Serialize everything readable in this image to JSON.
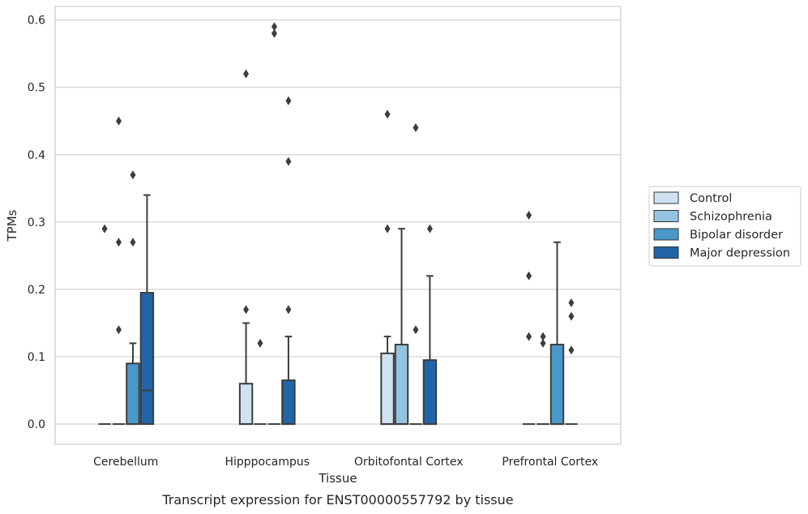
{
  "caption": "Transcript expression for ENST00000557792 by tissue",
  "chart_data": {
    "type": "box",
    "title": "",
    "xlabel": "Tissue",
    "ylabel": "TPMs",
    "ylim": [
      -0.03,
      0.62
    ],
    "yticks": [
      "0.0",
      "0.1",
      "0.2",
      "0.3",
      "0.4",
      "0.5",
      "0.6"
    ],
    "grid": true,
    "legend_position": "right",
    "categories": [
      "Cerebellum",
      "Hipppocampus",
      "Orbitofontal Cortex",
      "Prefrontal Cortex"
    ],
    "series": [
      {
        "name": "Control",
        "color": "#d0e1f2",
        "boxes": [
          {
            "q1": 0,
            "median": 0,
            "q3": 0,
            "whisker_low": 0,
            "whisker_high": 0,
            "outliers": [
              0.29
            ]
          },
          {
            "q1": 0,
            "median": 0,
            "q3": 0.06,
            "whisker_low": 0,
            "whisker_high": 0.15,
            "outliers": [
              0.17,
              0.52
            ]
          },
          {
            "q1": 0,
            "median": 0,
            "q3": 0.105,
            "whisker_low": 0,
            "whisker_high": 0.13,
            "outliers": [
              0.29,
              0.46
            ]
          },
          {
            "q1": 0,
            "median": 0,
            "q3": 0,
            "whisker_low": 0,
            "whisker_high": 0,
            "outliers": [
              0.13,
              0.22,
              0.31
            ]
          }
        ]
      },
      {
        "name": "Schizophrenia",
        "color": "#94c4df",
        "boxes": [
          {
            "q1": 0,
            "median": 0,
            "q3": 0,
            "whisker_low": 0,
            "whisker_high": 0,
            "outliers": [
              0.14,
              0.27,
              0.45
            ]
          },
          {
            "q1": 0,
            "median": 0,
            "q3": 0,
            "whisker_low": 0,
            "whisker_high": 0,
            "outliers": [
              0.12
            ]
          },
          {
            "q1": 0,
            "median": 0,
            "q3": 0.118,
            "whisker_low": 0,
            "whisker_high": 0.29,
            "outliers": []
          },
          {
            "q1": 0,
            "median": 0,
            "q3": 0,
            "whisker_low": 0,
            "whisker_high": 0,
            "outliers": [
              0.12,
              0.13
            ]
          }
        ]
      },
      {
        "name": "Bipolar disorder",
        "color": "#4a98c9",
        "boxes": [
          {
            "q1": 0,
            "median": 0,
            "q3": 0.09,
            "whisker_low": 0,
            "whisker_high": 0.12,
            "outliers": [
              0.27,
              0.37
            ]
          },
          {
            "q1": 0,
            "median": 0,
            "q3": 0,
            "whisker_low": 0,
            "whisker_high": 0,
            "outliers": [
              0.58,
              0.59
            ]
          },
          {
            "q1": 0,
            "median": 0,
            "q3": 0,
            "whisker_low": 0,
            "whisker_high": 0,
            "outliers": [
              0.14,
              0.44
            ]
          },
          {
            "q1": 0,
            "median": 0,
            "q3": 0.118,
            "whisker_low": 0,
            "whisker_high": 0.27,
            "outliers": []
          }
        ]
      },
      {
        "name": "Major depression",
        "color": "#2264a8",
        "boxes": [
          {
            "q1": 0,
            "median": 0.05,
            "q3": 0.195,
            "whisker_low": 0,
            "whisker_high": 0.34,
            "outliers": []
          },
          {
            "q1": 0,
            "median": 0,
            "q3": 0.065,
            "whisker_low": 0,
            "whisker_high": 0.13,
            "outliers": [
              0.17,
              0.39,
              0.48
            ]
          },
          {
            "q1": 0,
            "median": 0,
            "q3": 0.095,
            "whisker_low": 0,
            "whisker_high": 0.22,
            "outliers": [
              0.29
            ]
          },
          {
            "q1": 0,
            "median": 0,
            "q3": 0,
            "whisker_low": 0,
            "whisker_high": 0,
            "outliers": [
              0.11,
              0.16,
              0.18
            ]
          }
        ]
      }
    ]
  }
}
